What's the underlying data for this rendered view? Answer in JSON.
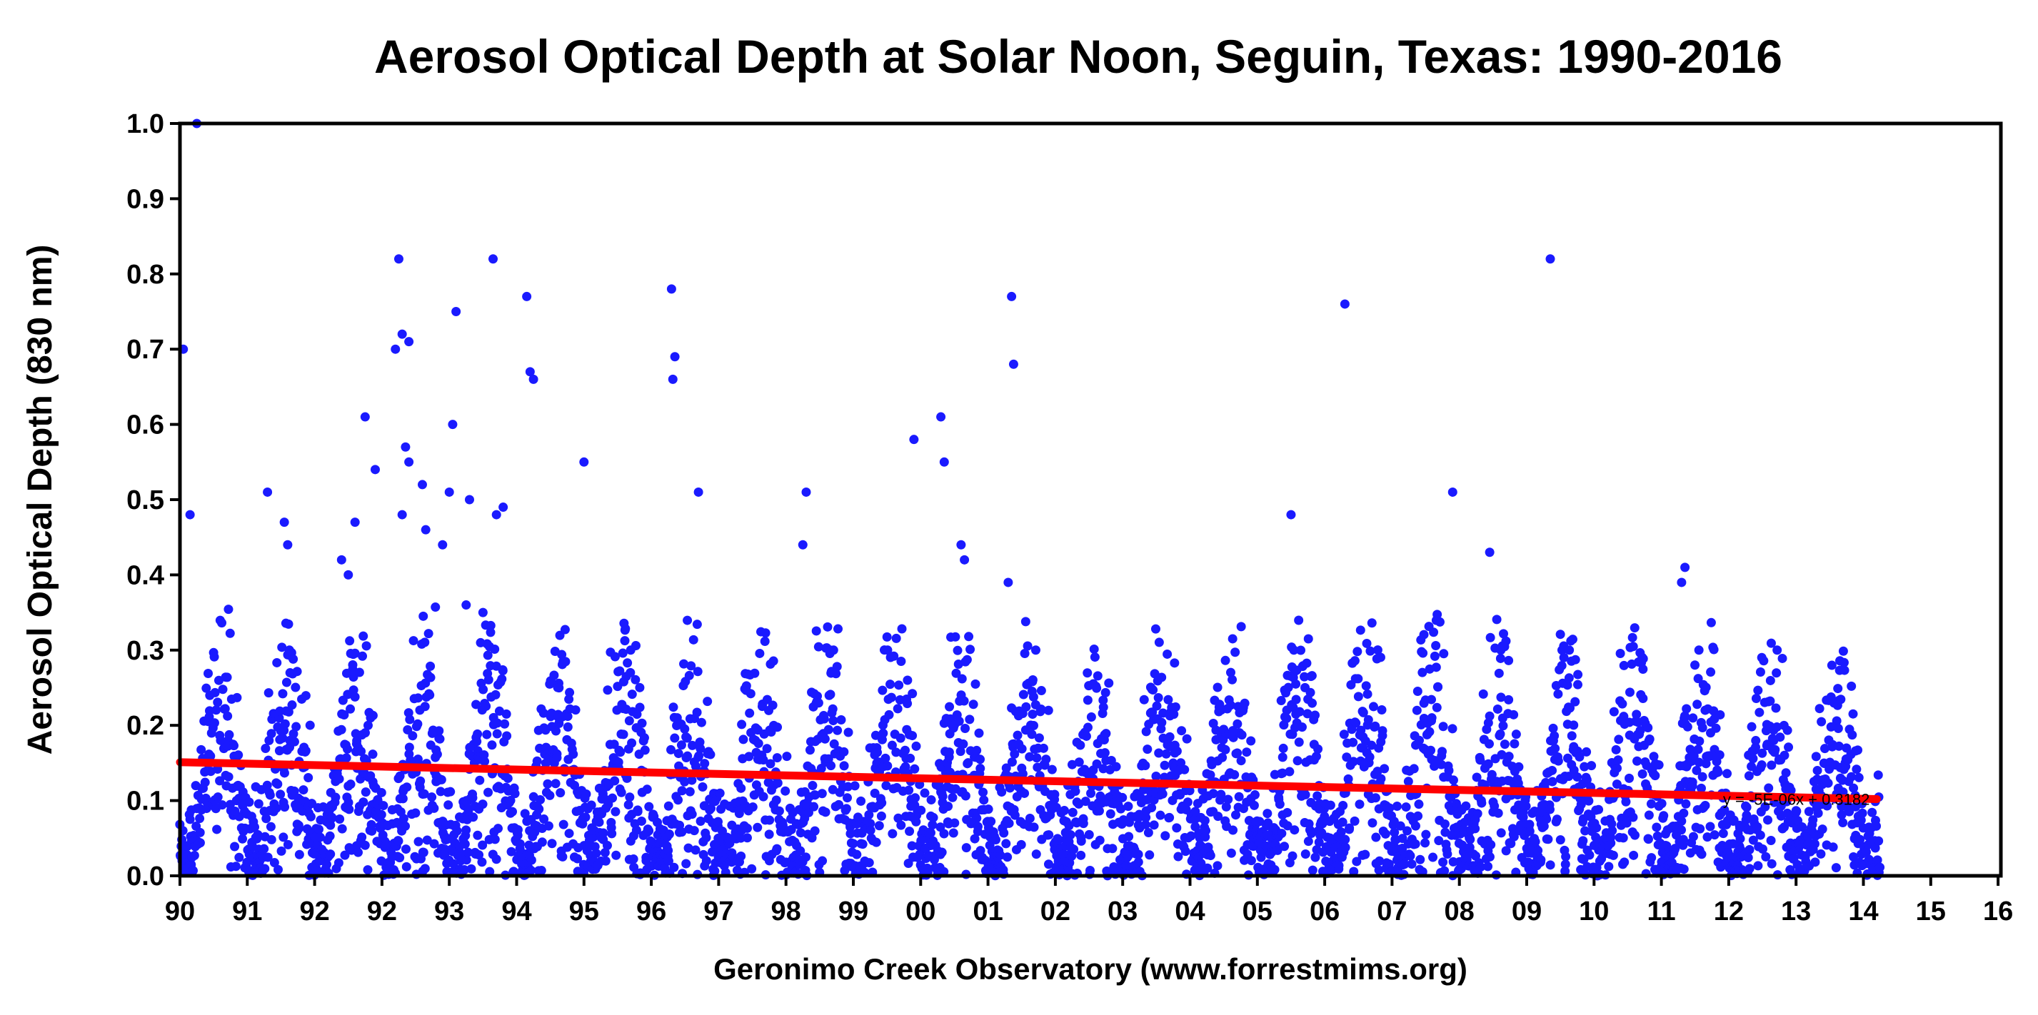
{
  "chart_data": {
    "type": "scatter",
    "title": "Aerosol Optical Depth at Solar Noon, Seguin, Texas: 1990-2016",
    "ylabel": "Aerosol Optical Depth (830 nm)",
    "xlabel": "Geronimo Creek Observatory (www.forrestmims.org)",
    "ylim": [
      0.0,
      1.0
    ],
    "xlim": [
      1990,
      2016.6
    ],
    "y_ticks": [
      "0.0",
      "0.1",
      "0.2",
      "0.3",
      "0.4",
      "0.5",
      "0.6",
      "0.7",
      "0.8",
      "0.9",
      "1.0"
    ],
    "x_ticks": [
      "90",
      "91",
      "92",
      "92",
      "93",
      "94",
      "95",
      "96",
      "97",
      "98",
      "99",
      "00",
      "01",
      "02",
      "03",
      "04",
      "05",
      "06",
      "07",
      "08",
      "09",
      "10",
      "11",
      "12",
      "13",
      "14",
      "15",
      "16"
    ],
    "grid": false,
    "legend": "none",
    "point_color": "#1a1aff",
    "trend_color": "#ff0000",
    "trendline": {
      "x": [
        1990.0,
        2015.2
      ],
      "y": [
        0.151,
        0.102
      ],
      "equation": "y = -5E-06x + 0.3182"
    },
    "points": [
      [
        1990.05,
        0.7
      ],
      [
        1990.15,
        0.48
      ],
      [
        1990.25,
        1.0
      ],
      [
        1993.25,
        0.82
      ],
      [
        1993.3,
        0.72
      ],
      [
        1993.4,
        0.71
      ],
      [
        1993.2,
        0.7
      ],
      [
        1993.35,
        0.57
      ],
      [
        1993.4,
        0.55
      ],
      [
        1993.6,
        0.52
      ],
      [
        1993.65,
        0.46
      ],
      [
        1993.3,
        0.48
      ],
      [
        1994.1,
        0.75
      ],
      [
        1994.05,
        0.6
      ],
      [
        1994.0,
        0.51
      ],
      [
        1994.3,
        0.5
      ],
      [
        1994.65,
        0.82
      ],
      [
        1994.8,
        0.49
      ],
      [
        1994.7,
        0.48
      ],
      [
        1995.15,
        0.77
      ],
      [
        1995.2,
        0.67
      ],
      [
        1995.25,
        0.66
      ],
      [
        1996.0,
        0.55
      ],
      [
        1997.3,
        0.78
      ],
      [
        1997.35,
        0.69
      ],
      [
        1997.32,
        0.66
      ],
      [
        1997.7,
        0.51
      ],
      [
        1991.3,
        0.51
      ],
      [
        1991.55,
        0.47
      ],
      [
        1991.6,
        0.44
      ],
      [
        1992.75,
        0.61
      ],
      [
        1992.9,
        0.54
      ],
      [
        1992.6,
        0.47
      ],
      [
        2000.9,
        0.58
      ],
      [
        2001.3,
        0.61
      ],
      [
        2001.35,
        0.55
      ],
      [
        2002.35,
        0.77
      ],
      [
        2002.38,
        0.68
      ],
      [
        1999.3,
        0.51
      ],
      [
        1999.25,
        0.44
      ],
      [
        2006.5,
        0.48
      ],
      [
        2007.3,
        0.76
      ],
      [
        2008.9,
        0.51
      ],
      [
        2009.45,
        0.43
      ],
      [
        2010.35,
        0.82
      ],
      [
        2012.35,
        0.41
      ],
      [
        2012.3,
        0.39
      ],
      [
        2002.3,
        0.39
      ],
      [
        2001.6,
        0.44
      ],
      [
        2001.65,
        0.42
      ],
      [
        1992.4,
        0.42
      ],
      [
        1992.5,
        0.4
      ],
      [
        1993.9,
        0.44
      ],
      [
        1994.25,
        0.36
      ],
      [
        1994.5,
        0.35
      ]
    ],
    "point_seed": 20160
  }
}
